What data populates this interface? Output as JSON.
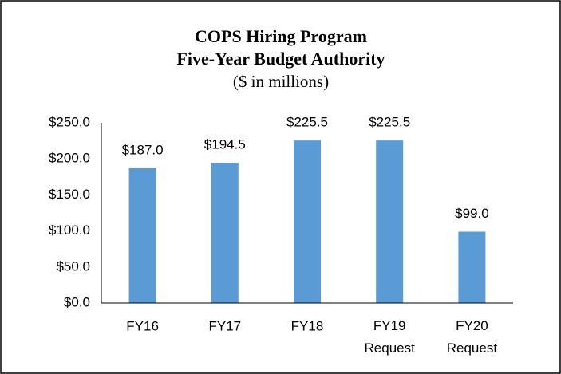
{
  "chart_data": {
    "type": "bar",
    "title": [
      "COPS Hiring Program",
      "Five-Year Budget Authority"
    ],
    "subtitle": "($ in millions)",
    "categories": [
      "FY16",
      "FY17",
      "FY18",
      "FY19 Request",
      "FY20 Request"
    ],
    "values": [
      187.0,
      194.5,
      225.5,
      225.5,
      99.0
    ],
    "value_labels": [
      "$187.0",
      "$194.5",
      "$225.5",
      "$225.5",
      "$99.0"
    ],
    "color": "#5b9bd5",
    "ylim": [
      0,
      250
    ],
    "yticks": [
      {
        "value": 0,
        "label": "$0.0"
      },
      {
        "value": 50,
        "label": "$50.0"
      },
      {
        "value": 100,
        "label": "$100.0"
      },
      {
        "value": 150,
        "label": "$150.0"
      },
      {
        "value": 200,
        "label": "$200.0"
      },
      {
        "value": 250,
        "label": "$250.0"
      }
    ],
    "grid": false
  }
}
